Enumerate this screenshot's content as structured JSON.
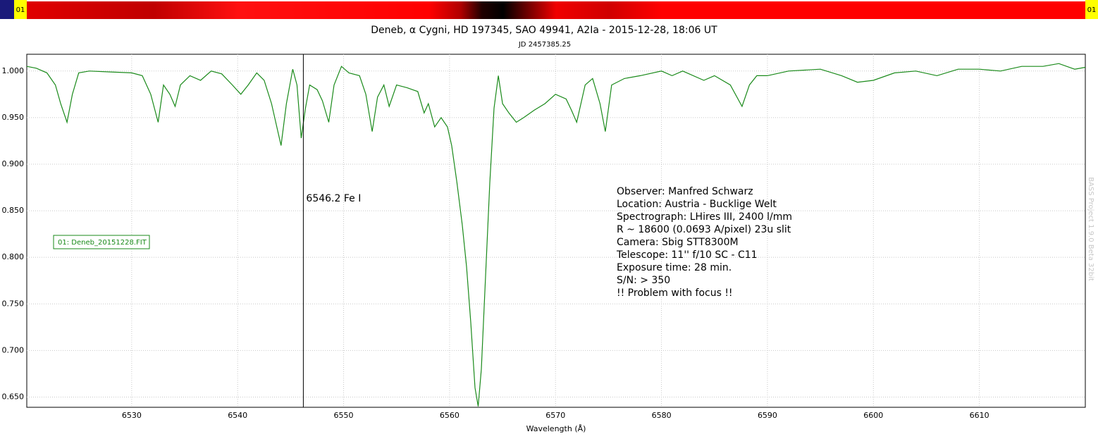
{
  "chart_data": {
    "type": "line",
    "title": "Deneb, α Cygni, HD 197345, SAO 49941, A2Ia - 2015-12-28, 18:06 UT",
    "subtitle": "JD 2457385.25",
    "x_label": "Wavelength (Å)",
    "strip_labels": [
      "01",
      "01"
    ],
    "watermark": "BASS Project 1.9.0 Beta 32bit",
    "grid": true,
    "xlim": [
      6520.1,
      6620.0
    ],
    "ylim": [
      0.639,
      1.018
    ],
    "xticks": [
      6530,
      6540,
      6550,
      6560,
      6570,
      6580,
      6590,
      6600,
      6610
    ],
    "yticks": [
      {
        "value": 0.65,
        "label": "0.650"
      },
      {
        "value": 0.7,
        "label": "0.700"
      },
      {
        "value": 0.75,
        "label": "0.750"
      },
      {
        "value": 0.8,
        "label": "0.800"
      },
      {
        "value": 0.85,
        "label": "0.850"
      },
      {
        "value": 0.9,
        "label": "0.900"
      },
      {
        "value": 0.95,
        "label": "0.950"
      },
      {
        "value": 1.0,
        "label": "1.000"
      }
    ],
    "markers": [
      {
        "x": 6546.2,
        "label": "6546.2 Fe I"
      }
    ],
    "info": [
      "Observer: Manfred Schwarz",
      "Location: Austria - Bucklige Welt",
      "Spectrograph: LHires III, 2400 l/mm",
      "R ~ 18600 (0.0693 A/pixel) 23u slit",
      "Camera: Sbig STT8300M",
      "Telescope: 11'' f/10 SC - C11",
      "Exposure time: 28 min.",
      "S/N:  > 350",
      "!! Problem with focus !!"
    ],
    "series": [
      {
        "name": "01: Deneb_20151228.FIT",
        "color": "#1a8a1a",
        "x": [
          6520.1,
          6521.0,
          6522.0,
          6522.8,
          6523.3,
          6523.9,
          6524.4,
          6525.0,
          6526.0,
          6528.0,
          6530.0,
          6531.0,
          6531.8,
          6532.5,
          6533.0,
          6533.6,
          6534.1,
          6534.6,
          6535.5,
          6536.5,
          6537.5,
          6538.5,
          6539.5,
          6540.3,
          6541.0,
          6541.8,
          6542.5,
          6543.2,
          6543.8,
          6544.1,
          6544.6,
          6545.2,
          6545.6,
          6546.0,
          6546.4,
          6546.8,
          6547.5,
          6548.0,
          6548.6,
          6549.1,
          6549.8,
          6550.5,
          6551.5,
          6552.1,
          6552.7,
          6553.2,
          6553.8,
          6554.3,
          6555.0,
          6556.0,
          6557.0,
          6557.6,
          6558.0,
          6558.6,
          6559.2,
          6559.8,
          6560.2,
          6560.7,
          6561.2,
          6561.6,
          6562.0,
          6562.4,
          6562.7,
          6563.0,
          6563.4,
          6563.8,
          6564.2,
          6564.6,
          6565.0,
          6565.6,
          6566.3,
          6567.0,
          6568.0,
          6569.0,
          6570.0,
          6571.0,
          6571.5,
          6572.0,
          6572.8,
          6573.5,
          6574.2,
          6574.7,
          6575.3,
          6576.5,
          6578.0,
          6580.0,
          6581.0,
          6582.0,
          6584.0,
          6585.0,
          6586.5,
          6587.6,
          6588.3,
          6589.0,
          6590.0,
          6592.0,
          6595.0,
          6597.0,
          6598.5,
          6600.0,
          6602.0,
          6604.0,
          6606.0,
          6608.0,
          6610.0,
          6612.0,
          6614.0,
          6616.0,
          6617.5,
          6619.0,
          6620.0
        ],
        "values": [
          1.005,
          1.003,
          0.998,
          0.985,
          0.965,
          0.945,
          0.975,
          0.998,
          1.0,
          0.999,
          0.998,
          0.995,
          0.975,
          0.945,
          0.985,
          0.975,
          0.962,
          0.985,
          0.995,
          0.99,
          1.0,
          0.997,
          0.985,
          0.975,
          0.985,
          0.998,
          0.99,
          0.965,
          0.935,
          0.92,
          0.965,
          1.002,
          0.985,
          0.928,
          0.96,
          0.985,
          0.98,
          0.968,
          0.945,
          0.985,
          1.005,
          0.998,
          0.995,
          0.975,
          0.935,
          0.972,
          0.985,
          0.962,
          0.985,
          0.982,
          0.978,
          0.955,
          0.965,
          0.94,
          0.95,
          0.94,
          0.92,
          0.88,
          0.835,
          0.79,
          0.73,
          0.66,
          0.64,
          0.68,
          0.78,
          0.88,
          0.96,
          0.995,
          0.965,
          0.955,
          0.945,
          0.95,
          0.958,
          0.965,
          0.975,
          0.97,
          0.958,
          0.945,
          0.985,
          0.992,
          0.965,
          0.935,
          0.985,
          0.992,
          0.995,
          1.0,
          0.995,
          1.0,
          0.99,
          0.995,
          0.985,
          0.962,
          0.985,
          0.995,
          0.995,
          1.0,
          1.002,
          0.995,
          0.988,
          0.99,
          0.998,
          1.0,
          0.995,
          1.002,
          1.002,
          1.0,
          1.005,
          1.005,
          1.008,
          1.002,
          1.004
        ]
      }
    ]
  }
}
